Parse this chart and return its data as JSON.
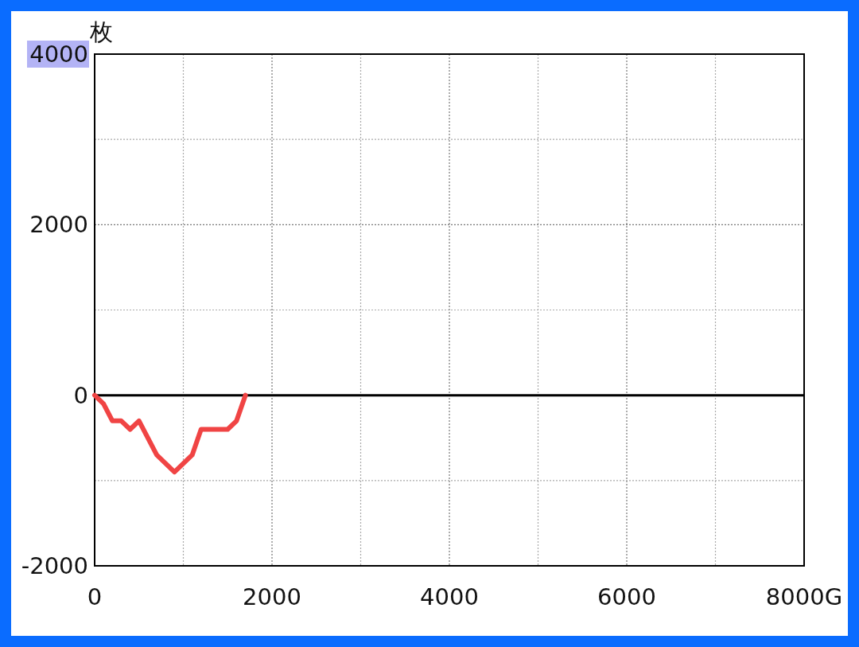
{
  "chart_data": {
    "type": "line",
    "ylabel": "枚",
    "x": [
      0,
      100,
      200,
      300,
      400,
      500,
      700,
      900,
      1100,
      1200,
      1500,
      1600,
      1700
    ],
    "series": [
      {
        "color": "#f04444",
        "values": [
          0,
          -100,
          -300,
          -300,
          -400,
          -300,
          -700,
          -900,
          -700,
          -400,
          -400,
          -300,
          0
        ]
      }
    ],
    "xlim": [
      0,
      8000
    ],
    "ylim": [
      -2000,
      4000
    ],
    "xticks": [
      0,
      {
        "value": 1000,
        "label": null
      },
      2000,
      {
        "value": 3000,
        "label": null
      },
      4000,
      {
        "value": 5000,
        "label": null
      },
      6000,
      {
        "value": 7000,
        "label": null
      },
      {
        "value": 8000,
        "label": "8000G"
      }
    ],
    "yticks": [
      -2000,
      {
        "value": -1000,
        "label": null
      },
      0,
      {
        "value": 1000,
        "label": null
      },
      2000,
      {
        "value": 3000,
        "label": null
      },
      4000
    ],
    "grid": true,
    "ref_lines": [
      {
        "axis": "y",
        "value": 0,
        "color": "#000000"
      }
    ]
  }
}
